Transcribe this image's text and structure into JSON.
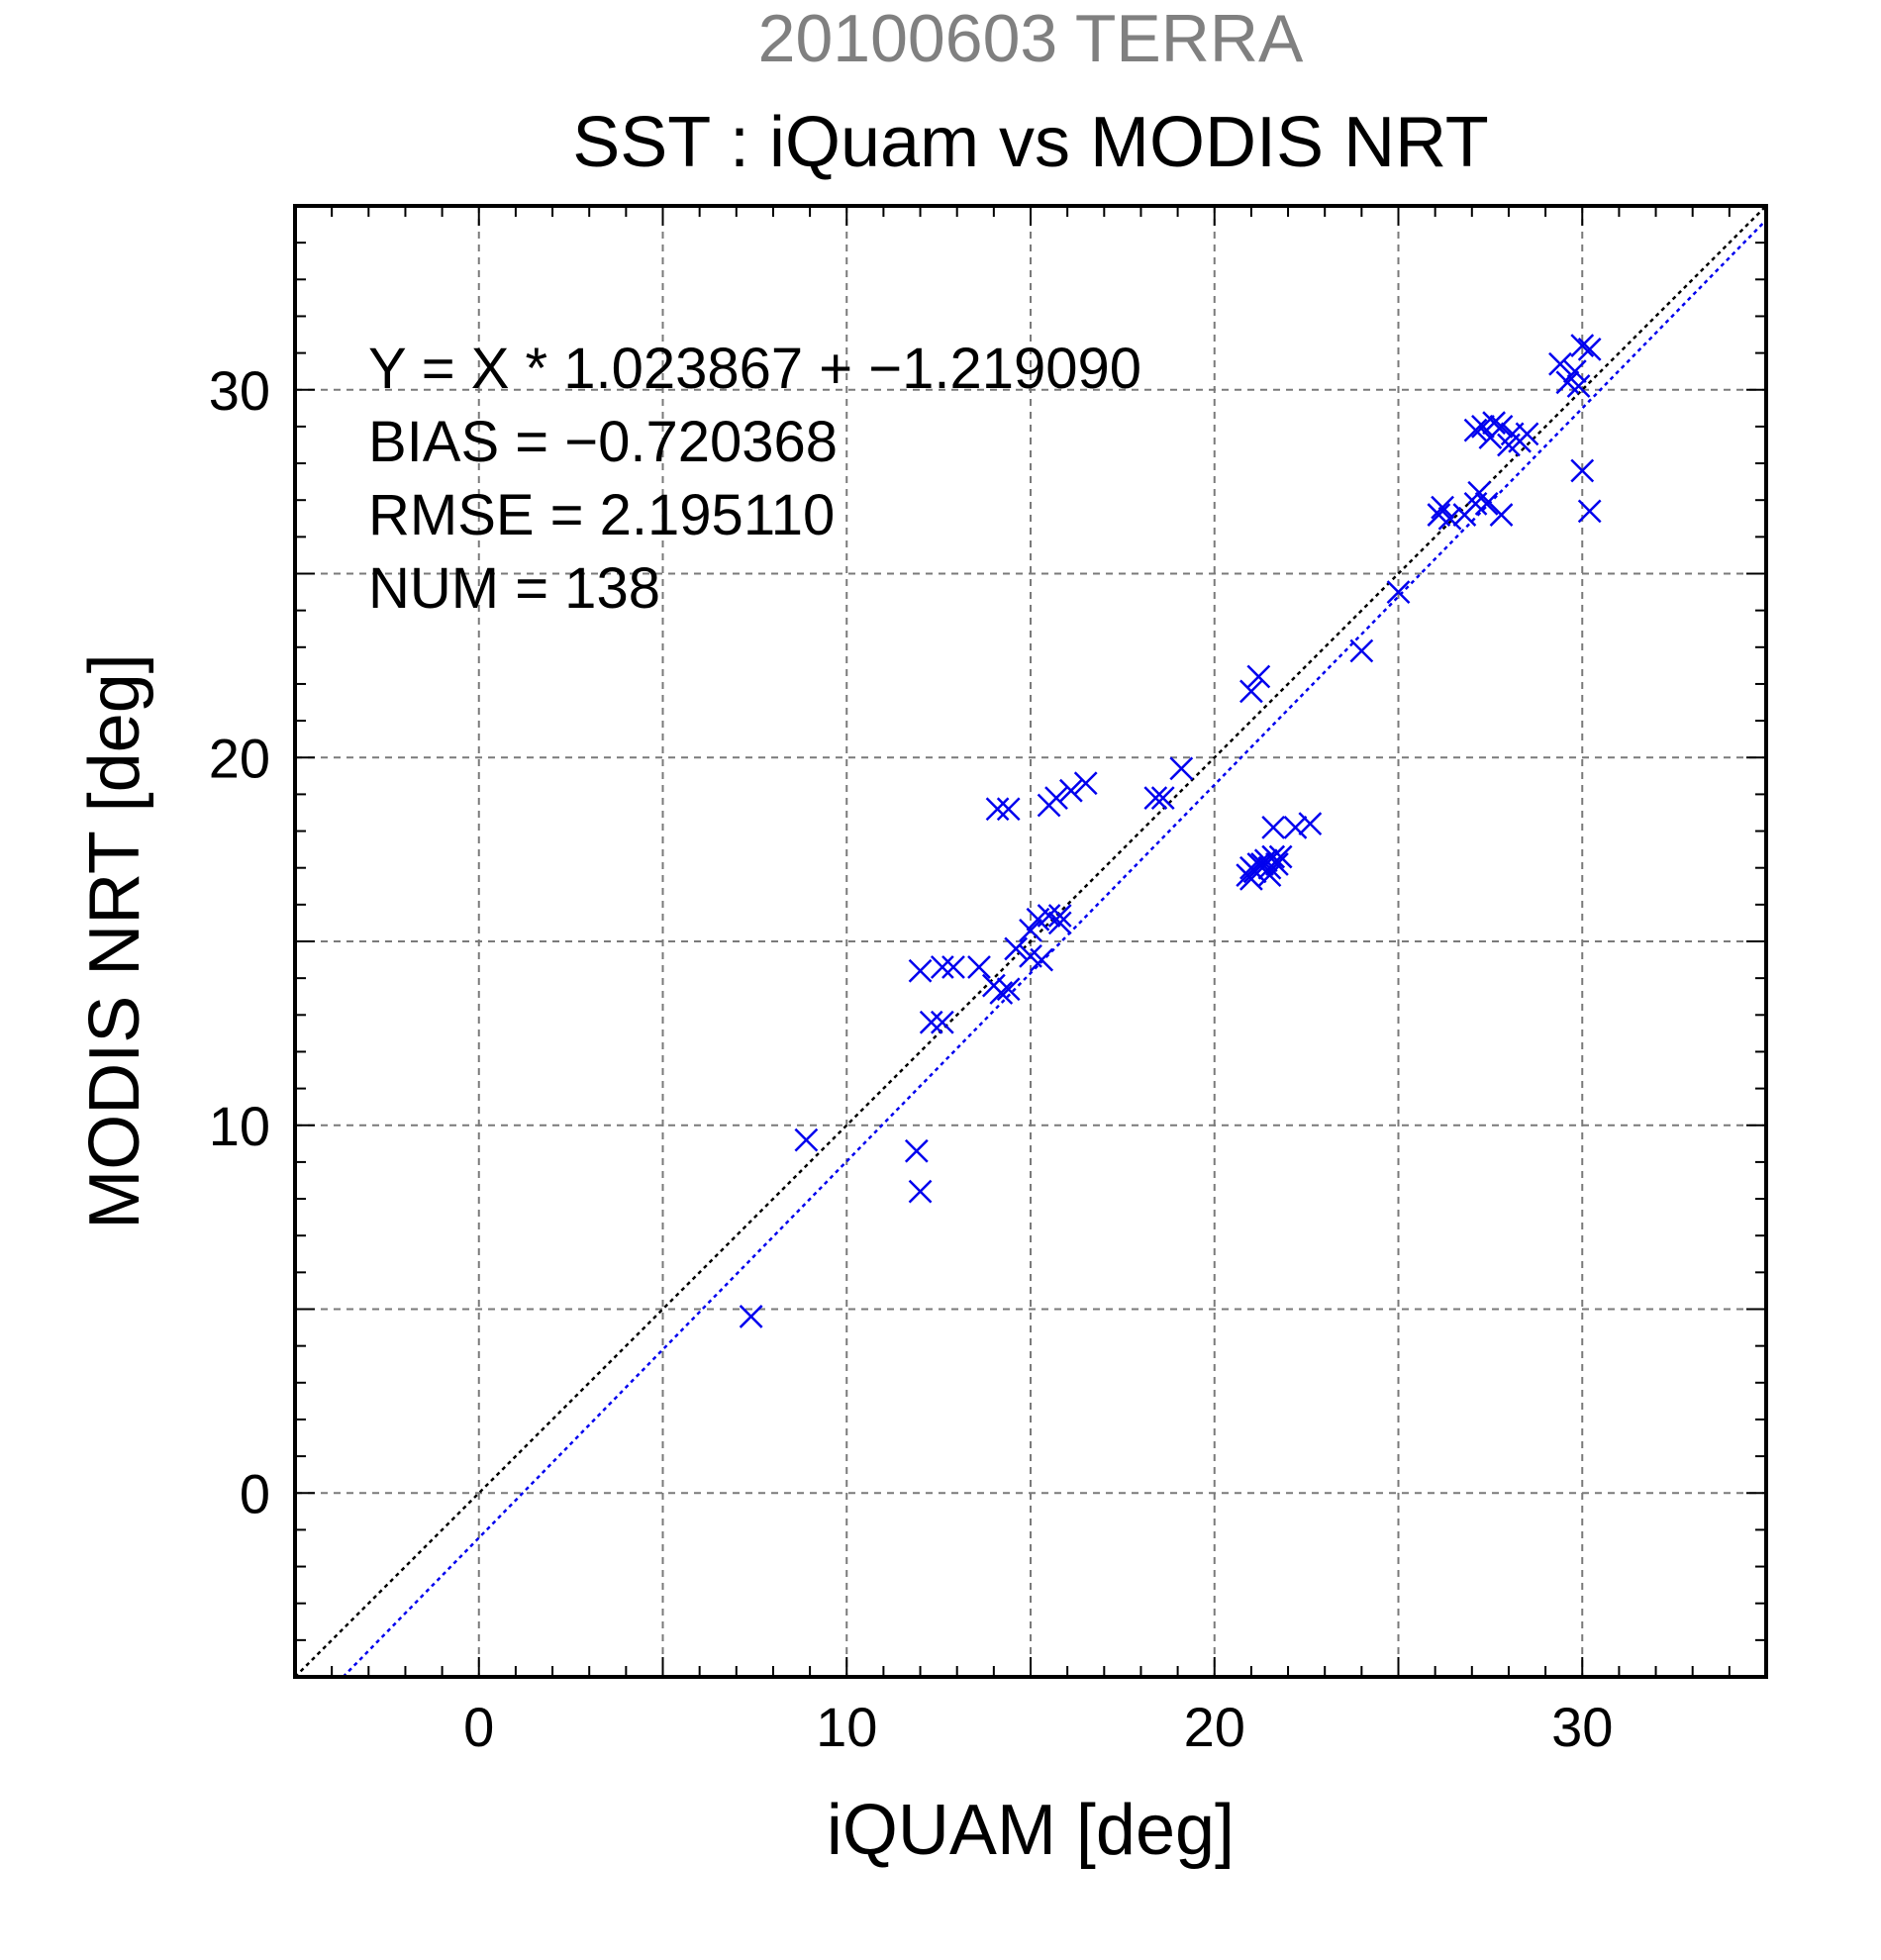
{
  "chart_data": {
    "type": "scatter",
    "title": "SST : iQuam vs MODIS NRT",
    "subtitle": "20100603 TERRA",
    "xlabel": "iQUAM [deg]",
    "ylabel": "MODIS NRT [deg]",
    "xlim": [
      -5,
      35
    ],
    "ylim": [
      -5,
      35
    ],
    "xticks": [
      0,
      10,
      20,
      30
    ],
    "yticks": [
      0,
      10,
      20,
      30
    ],
    "grid": true,
    "annotations": [
      "Y = X * 1.023867 + −1.219090",
      "BIAS = −0.720368",
      "RMSE = 2.195110",
      "NUM = 138"
    ],
    "lines": [
      {
        "kind": "one-to-one",
        "slope": 1,
        "intercept": 0,
        "color": "#000000"
      },
      {
        "kind": "regression",
        "slope": 1.023867,
        "intercept": -1.21909,
        "color": "#0000ee"
      }
    ],
    "series": [
      {
        "marker": "x",
        "color": "#0000ee",
        "points": [
          [
            7.4,
            4.8
          ],
          [
            8.9,
            9.6
          ],
          [
            11.9,
            9.3
          ],
          [
            12.0,
            8.2
          ],
          [
            12.0,
            14.2
          ],
          [
            12.3,
            12.8
          ],
          [
            12.6,
            12.8
          ],
          [
            12.6,
            14.3
          ],
          [
            12.9,
            14.3
          ],
          [
            13.6,
            14.3
          ],
          [
            14.0,
            13.8
          ],
          [
            14.2,
            13.6
          ],
          [
            14.4,
            13.7
          ],
          [
            14.1,
            18.6
          ],
          [
            14.4,
            18.6
          ],
          [
            14.6,
            14.8
          ],
          [
            15.0,
            14.6
          ],
          [
            15.0,
            15.3
          ],
          [
            15.2,
            15.6
          ],
          [
            15.3,
            14.5
          ],
          [
            15.5,
            15.7
          ],
          [
            15.8,
            15.7
          ],
          [
            15.8,
            15.5
          ],
          [
            15.5,
            18.7
          ],
          [
            15.7,
            18.9
          ],
          [
            16.1,
            19.1
          ],
          [
            16.5,
            19.3
          ],
          [
            18.4,
            18.9
          ],
          [
            18.6,
            18.9
          ],
          [
            19.1,
            19.7
          ],
          [
            20.9,
            16.8
          ],
          [
            21.0,
            17.0
          ],
          [
            21.2,
            17.1
          ],
          [
            21.1,
            16.9
          ],
          [
            21.4,
            17.2
          ],
          [
            21.5,
            17.0
          ],
          [
            21.6,
            17.3
          ],
          [
            21.8,
            17.3
          ],
          [
            21.5,
            16.8
          ],
          [
            21.3,
            17.1
          ],
          [
            21.0,
            16.7
          ],
          [
            21.7,
            17.1
          ],
          [
            21.6,
            18.1
          ],
          [
            22.2,
            18.1
          ],
          [
            22.6,
            18.2
          ],
          [
            21.0,
            21.8
          ],
          [
            21.2,
            22.2
          ],
          [
            24.0,
            22.9
          ],
          [
            25.0,
            24.5
          ],
          [
            26.1,
            26.6
          ],
          [
            26.2,
            26.8
          ],
          [
            26.4,
            26.5
          ],
          [
            26.8,
            26.6
          ],
          [
            27.1,
            26.9
          ],
          [
            27.2,
            27.2
          ],
          [
            27.4,
            26.9
          ],
          [
            27.1,
            28.9
          ],
          [
            27.3,
            29.0
          ],
          [
            27.6,
            29.1
          ],
          [
            27.8,
            29.0
          ],
          [
            27.5,
            28.7
          ],
          [
            28.1,
            28.8
          ],
          [
            28.3,
            28.6
          ],
          [
            28.5,
            28.8
          ],
          [
            28.0,
            28.5
          ],
          [
            27.8,
            26.6
          ],
          [
            29.4,
            30.7
          ],
          [
            29.6,
            30.2
          ],
          [
            29.8,
            30.5
          ],
          [
            29.9,
            30.1
          ],
          [
            30.0,
            31.2
          ],
          [
            30.2,
            31.1
          ],
          [
            30.0,
            27.8
          ],
          [
            30.2,
            26.7
          ]
        ]
      }
    ]
  }
}
